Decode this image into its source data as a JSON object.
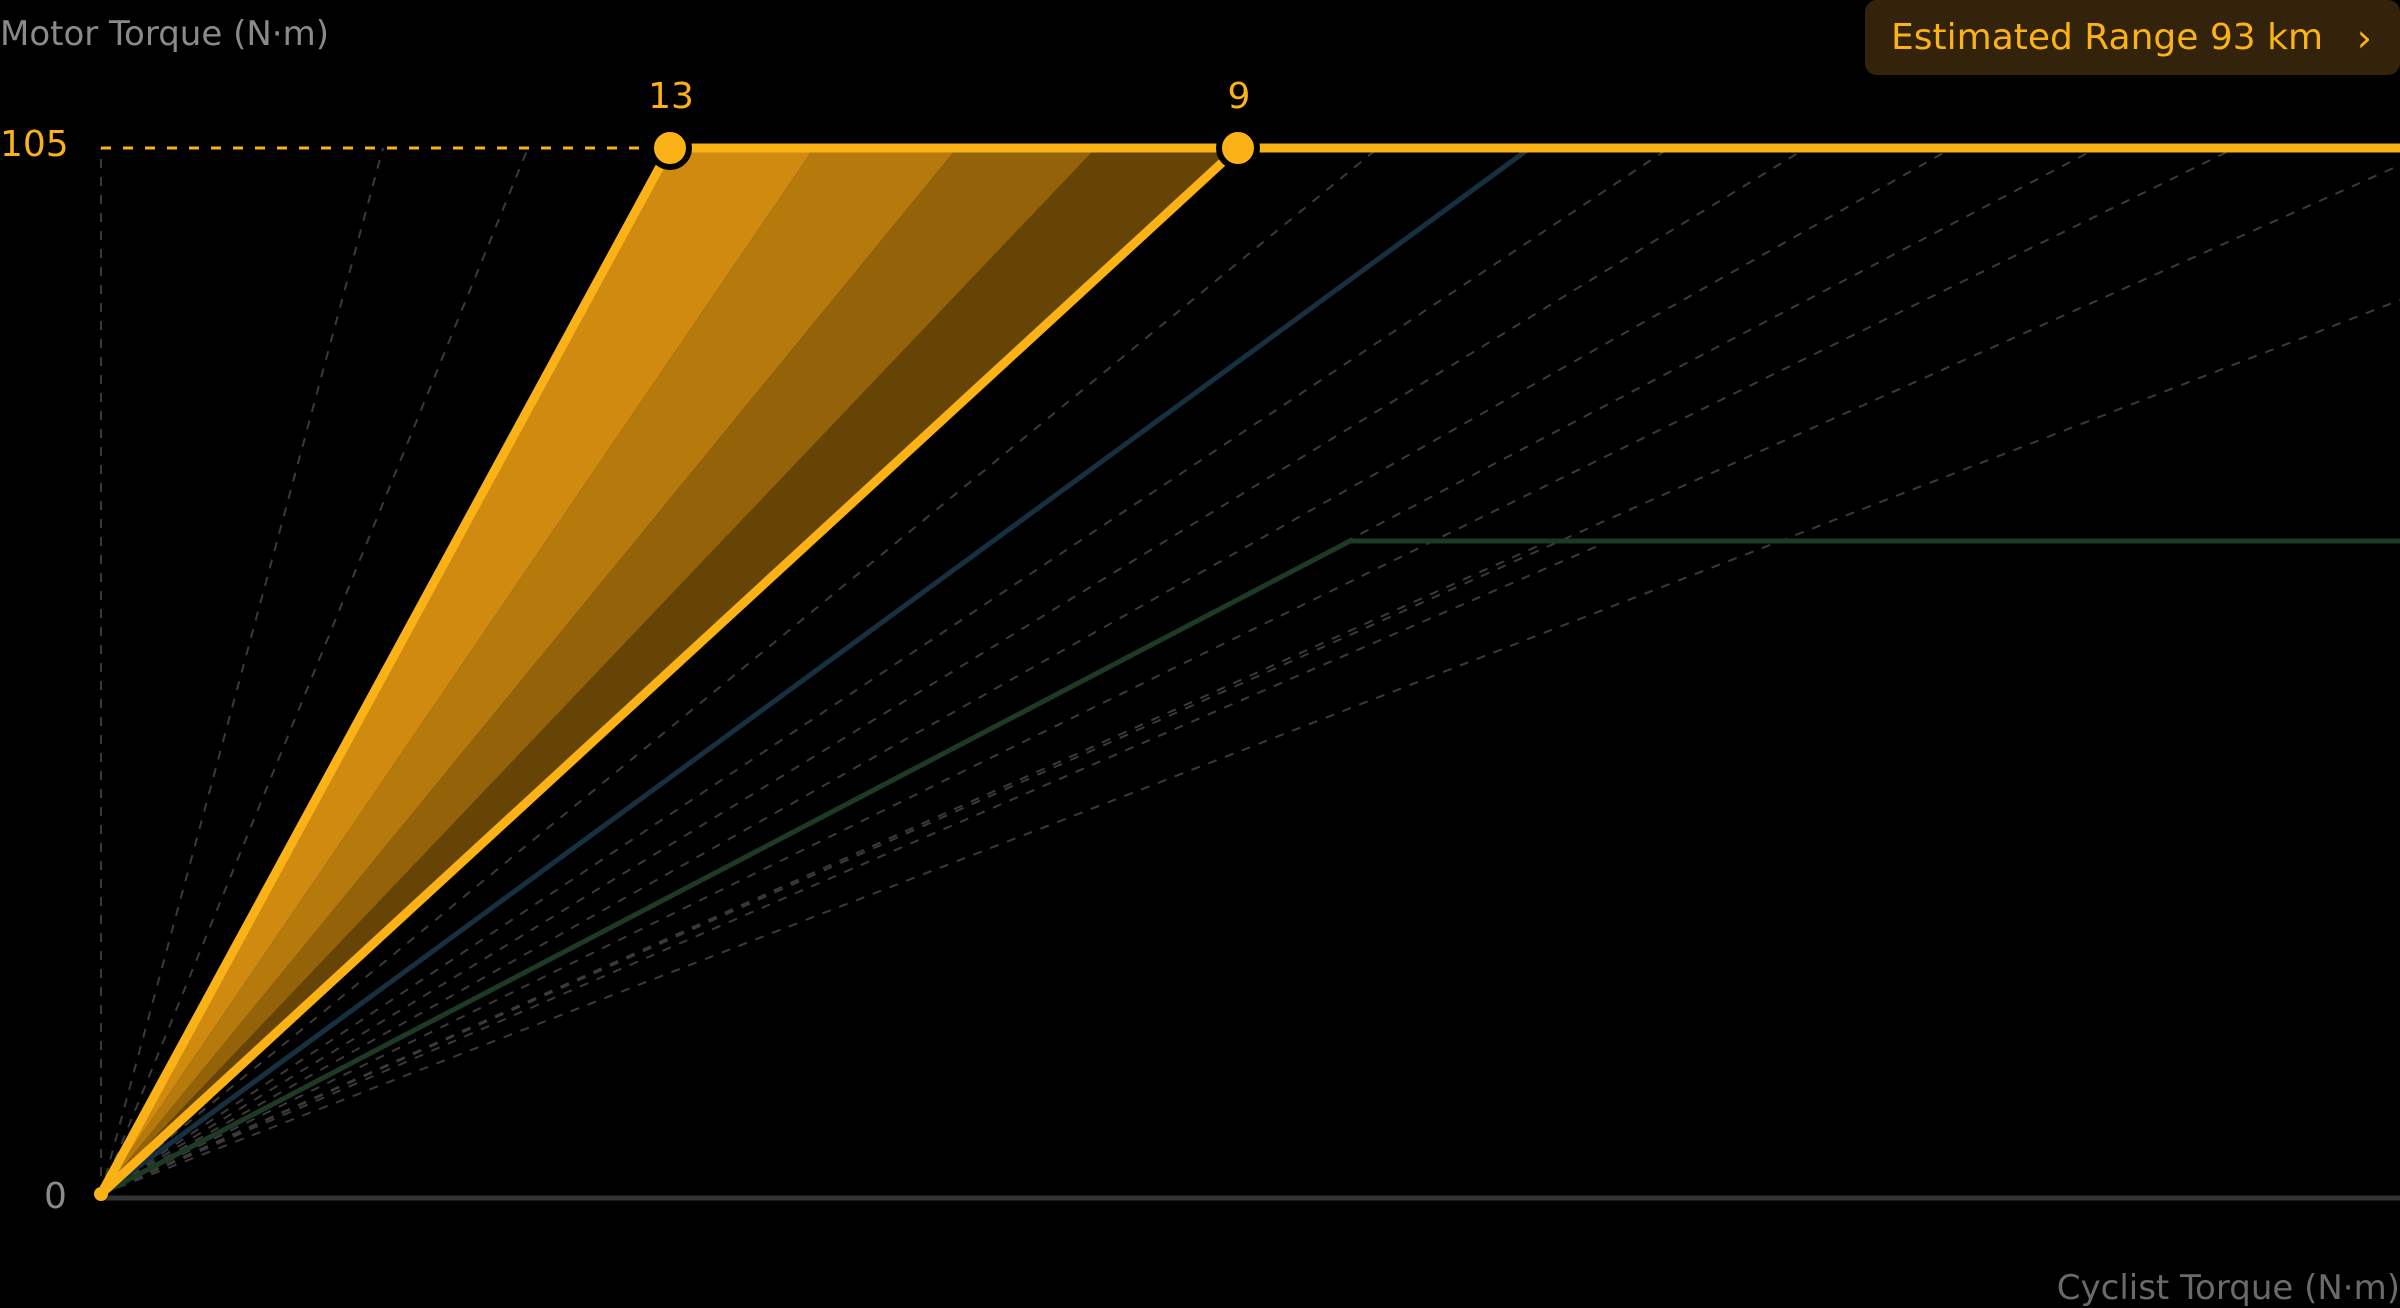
{
  "chart_data": {
    "type": "line",
    "ylabel": "Motor Torque (N·m)",
    "xlabel": "Cyclist Torque (N·m)",
    "y_ticks": [
      "0",
      "105"
    ],
    "ylim": [
      0,
      105
    ],
    "max_torque": 105,
    "highlight_points": [
      {
        "label": "13"
      },
      {
        "label": "9"
      }
    ],
    "grid": false,
    "colors": {
      "active": "#fbb216",
      "blue": "#17303f",
      "green": "#1d3a24",
      "dashed": "#3a3a3a",
      "axis": "#333333"
    }
  },
  "range_button": {
    "label": "Estimated Range 93 km",
    "chevron": "›"
  }
}
